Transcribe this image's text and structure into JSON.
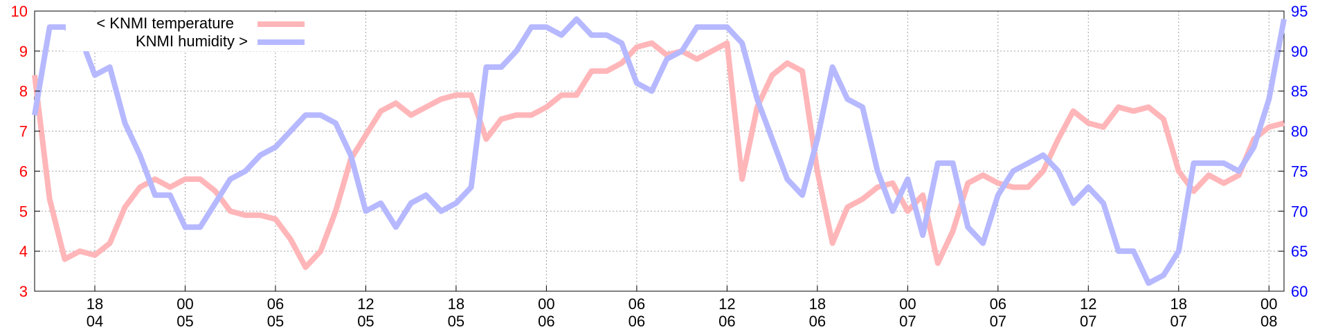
{
  "chart_data": {
    "type": "line",
    "x_start_hour": 14,
    "x_step_hours": 1,
    "x_ticks": [
      {
        "hour": 18,
        "time": "18",
        "day": "04"
      },
      {
        "hour": 24,
        "time": "00",
        "day": "05"
      },
      {
        "hour": 30,
        "time": "06",
        "day": "05"
      },
      {
        "hour": 36,
        "time": "12",
        "day": "05"
      },
      {
        "hour": 42,
        "time": "18",
        "day": "05"
      },
      {
        "hour": 48,
        "time": "00",
        "day": "06"
      },
      {
        "hour": 54,
        "time": "06",
        "day": "06"
      },
      {
        "hour": 60,
        "time": "12",
        "day": "06"
      },
      {
        "hour": 66,
        "time": "18",
        "day": "06"
      },
      {
        "hour": 72,
        "time": "00",
        "day": "07"
      },
      {
        "hour": 78,
        "time": "06",
        "day": "07"
      },
      {
        "hour": 84,
        "time": "12",
        "day": "07"
      },
      {
        "hour": 90,
        "time": "18",
        "day": "07"
      },
      {
        "hour": 96,
        "time": "00",
        "day": "08"
      }
    ],
    "x_range": [
      14,
      97
    ],
    "y_left": {
      "range": [
        3,
        10
      ],
      "ticks": [
        "3",
        "4",
        "5",
        "6",
        "7",
        "8",
        "9",
        "10"
      ],
      "color": "#ff0000"
    },
    "y_right": {
      "range": [
        60,
        95
      ],
      "ticks": [
        "60",
        "65",
        "70",
        "75",
        "80",
        "85",
        "90",
        "95"
      ],
      "color": "#0000ff"
    },
    "grid": true,
    "legend_position": "top-left",
    "series": [
      {
        "name": "< KNMI temperature",
        "axis": "left",
        "color": "#ffb6b9",
        "values": [
          8.4,
          5.3,
          3.8,
          4.0,
          3.9,
          4.2,
          5.1,
          5.6,
          5.8,
          5.6,
          5.8,
          5.8,
          5.5,
          5.0,
          4.9,
          4.9,
          4.8,
          4.3,
          3.6,
          4.0,
          5.0,
          6.3,
          6.9,
          7.5,
          7.7,
          7.4,
          7.6,
          7.8,
          7.9,
          7.9,
          6.8,
          7.3,
          7.4,
          7.4,
          7.6,
          7.9,
          7.9,
          8.5,
          8.5,
          8.7,
          9.1,
          9.2,
          8.9,
          9.0,
          8.8,
          9.0,
          9.2,
          5.8,
          7.6,
          8.4,
          8.7,
          8.5,
          6.0,
          4.2,
          5.1,
          5.3,
          5.6,
          5.7,
          5.0,
          5.4,
          3.7,
          4.5,
          5.7,
          5.9,
          5.7,
          5.6,
          5.6,
          6.0,
          6.8,
          7.5,
          7.2,
          7.1,
          7.6,
          7.5,
          7.6,
          7.3,
          6.0,
          5.5,
          5.9,
          5.7,
          5.9,
          6.8,
          7.1,
          7.2
        ]
      },
      {
        "name": "KNMI humidity >",
        "axis": "right",
        "color": "#b6b9ff",
        "values": [
          82,
          93,
          93,
          92,
          87,
          88,
          81,
          77,
          72,
          72,
          68,
          68,
          71,
          74,
          75,
          77,
          78,
          80,
          82,
          82,
          81,
          77,
          70,
          71,
          68,
          71,
          72,
          70,
          71,
          73,
          88,
          88,
          90,
          93,
          93,
          92,
          94,
          92,
          92,
          91,
          86,
          85,
          89,
          90,
          93,
          93,
          93,
          91,
          84,
          79,
          74,
          72,
          79,
          88,
          84,
          83,
          75,
          70,
          74,
          67,
          76,
          76,
          68,
          66,
          72,
          75,
          76,
          77,
          75,
          71,
          73,
          71,
          65,
          65,
          61,
          62,
          65,
          76,
          76,
          76,
          75,
          78,
          84,
          94
        ]
      }
    ]
  }
}
